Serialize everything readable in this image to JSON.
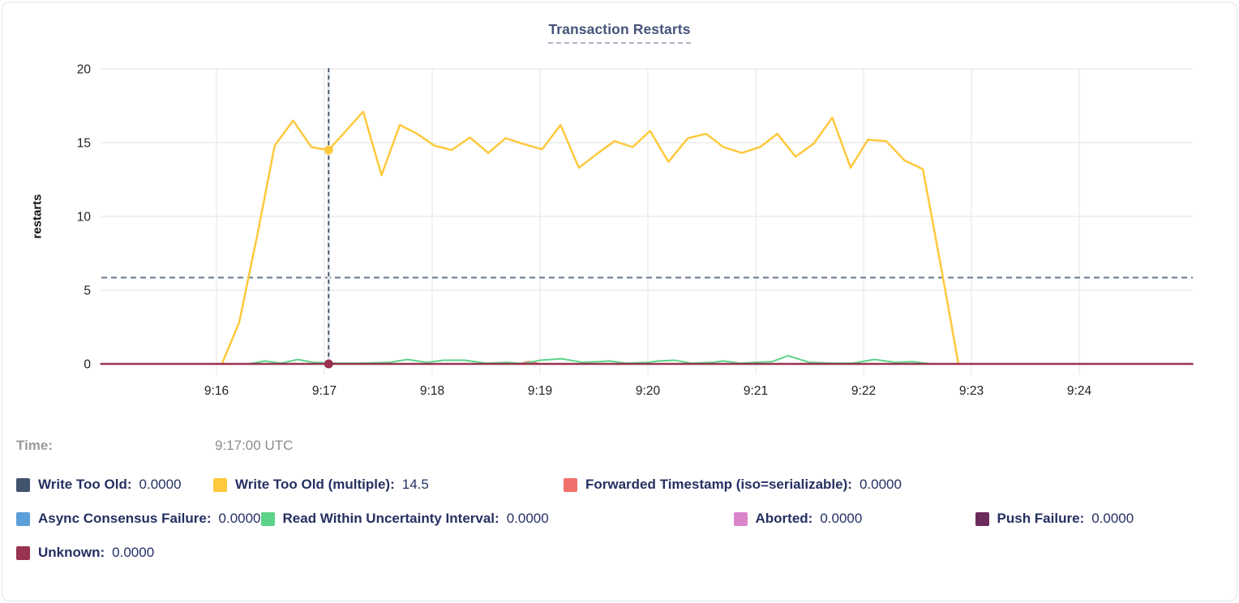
{
  "ui": {
    "time_label": "Time:",
    "time_value": "9:17:00 UTC"
  },
  "chart_data": {
    "type": "line",
    "title": "Transaction Restarts",
    "ylabel": "restarts",
    "xlabel": "",
    "ylim": [
      0,
      20
    ],
    "yticks": [
      0,
      5,
      10,
      15,
      20
    ],
    "xticks": [
      "9:16",
      "9:17",
      "9:18",
      "9:19",
      "9:20",
      "9:21",
      "9:22",
      "9:23",
      "9:24"
    ],
    "grid": true,
    "legend_position": "bottom",
    "avg_line": 5.85,
    "hover": {
      "x": 1.04,
      "time_label": "9:17:00 UTC",
      "points": [
        {
          "series": 1,
          "value": 14.5
        },
        {
          "series": 7,
          "value": 0
        }
      ]
    },
    "legend_rows": [
      [
        0,
        1,
        2
      ],
      [
        3,
        4,
        5,
        6
      ],
      [
        7
      ]
    ],
    "series": [
      {
        "id": "write-too-old",
        "label": "Write Too Old:",
        "value": "0.0000",
        "color": "#42536d",
        "width": 2,
        "points": null
      },
      {
        "id": "write-too-old-multiple",
        "label": "Write Too Old (multiple):",
        "value": "14.5",
        "color": "#fec93d",
        "width": 2.5,
        "points": [
          [
            0.05,
            0
          ],
          [
            0.21,
            2.8
          ],
          [
            0.38,
            8.8
          ],
          [
            0.54,
            14.8
          ],
          [
            0.71,
            16.5
          ],
          [
            0.88,
            14.7
          ],
          [
            1.04,
            14.5
          ],
          [
            1.2,
            15.8
          ],
          [
            1.36,
            17.1
          ],
          [
            1.53,
            12.8
          ],
          [
            1.7,
            16.2
          ],
          [
            1.86,
            15.6
          ],
          [
            2.02,
            14.8
          ],
          [
            2.18,
            14.5
          ],
          [
            2.35,
            15.35
          ],
          [
            2.52,
            14.3
          ],
          [
            2.68,
            15.3
          ],
          [
            2.85,
            14.9
          ],
          [
            3.02,
            14.55
          ],
          [
            3.19,
            16.2
          ],
          [
            3.36,
            13.3
          ],
          [
            3.52,
            14.2
          ],
          [
            3.69,
            15.1
          ],
          [
            3.86,
            14.7
          ],
          [
            4.02,
            15.8
          ],
          [
            4.19,
            13.7
          ],
          [
            4.37,
            15.3
          ],
          [
            4.54,
            15.6
          ],
          [
            4.7,
            14.7
          ],
          [
            4.87,
            14.3
          ],
          [
            5.04,
            14.7
          ],
          [
            5.2,
            15.6
          ],
          [
            5.37,
            14.05
          ],
          [
            5.54,
            14.95
          ],
          [
            5.71,
            16.7
          ],
          [
            5.88,
            13.3
          ],
          [
            6.04,
            15.2
          ],
          [
            6.21,
            15.1
          ],
          [
            6.38,
            13.8
          ],
          [
            6.55,
            13.2
          ],
          [
            6.72,
            6.5
          ],
          [
            6.88,
            0
          ]
        ]
      },
      {
        "id": "forwarded-timestamp",
        "label": "Forwarded Timestamp (iso=serializable):",
        "value": "0.0000",
        "color": "#f0716c",
        "width": 2,
        "points": [
          [
            -1.07,
            0
          ],
          [
            2.8,
            0
          ],
          [
            2.9,
            0.15
          ],
          [
            3.0,
            0
          ],
          [
            9.05,
            0
          ]
        ]
      },
      {
        "id": "async-consensus-failure",
        "label": "Async Consensus Failure:",
        "value": "0.0000",
        "color": "#5b9fd8",
        "width": 2,
        "points": null
      },
      {
        "id": "read-within-uncertainty-interval",
        "label": "Read Within Uncertainty Interval:",
        "value": "0.0000",
        "color": "#5cd389",
        "width": 2,
        "points": [
          [
            0.3,
            0
          ],
          [
            0.45,
            0.2
          ],
          [
            0.6,
            0.05
          ],
          [
            0.75,
            0.3
          ],
          [
            0.9,
            0.1
          ],
          [
            1.1,
            0.05
          ],
          [
            1.35,
            0.05
          ],
          [
            1.6,
            0.1
          ],
          [
            1.77,
            0.3
          ],
          [
            1.95,
            0.1
          ],
          [
            2.1,
            0.25
          ],
          [
            2.3,
            0.25
          ],
          [
            2.5,
            0.05
          ],
          [
            2.7,
            0.1
          ],
          [
            2.85,
            0.02
          ],
          [
            3.0,
            0.25
          ],
          [
            3.2,
            0.35
          ],
          [
            3.4,
            0.1
          ],
          [
            3.55,
            0.15
          ],
          [
            3.64,
            0.2
          ],
          [
            3.8,
            0.05
          ],
          [
            4.0,
            0.1
          ],
          [
            4.1,
            0.2
          ],
          [
            4.25,
            0.25
          ],
          [
            4.4,
            0.05
          ],
          [
            4.6,
            0.1
          ],
          [
            4.7,
            0.2
          ],
          [
            4.85,
            0.05
          ],
          [
            5.0,
            0.1
          ],
          [
            5.15,
            0.15
          ],
          [
            5.3,
            0.55
          ],
          [
            5.5,
            0.1
          ],
          [
            5.7,
            0.05
          ],
          [
            5.9,
            0.05
          ],
          [
            6.1,
            0.3
          ],
          [
            6.3,
            0.1
          ],
          [
            6.45,
            0.15
          ],
          [
            6.6,
            0.02
          ]
        ]
      },
      {
        "id": "aborted",
        "label": "Aborted:",
        "value": "0.0000",
        "color": "#da85cc",
        "width": 2,
        "points": null
      },
      {
        "id": "push-failure",
        "label": "Push Failure:",
        "value": "0.0000",
        "color": "#6b2a5c",
        "width": 2,
        "points": null
      },
      {
        "id": "unknown",
        "label": "Unknown:",
        "value": "0.0000",
        "color": "#993350",
        "width": 2.5,
        "points": [
          [
            -1.07,
            0
          ],
          [
            9.05,
            0
          ]
        ]
      }
    ],
    "colors": {
      "grid": "#ececec",
      "avg_dashed": "#67798f",
      "crosshair": "#344b63",
      "hover_band": "#e6e6e6",
      "tick_text": "#222222",
      "legend_text": "#253061",
      "title_text": "#46547a"
    }
  }
}
